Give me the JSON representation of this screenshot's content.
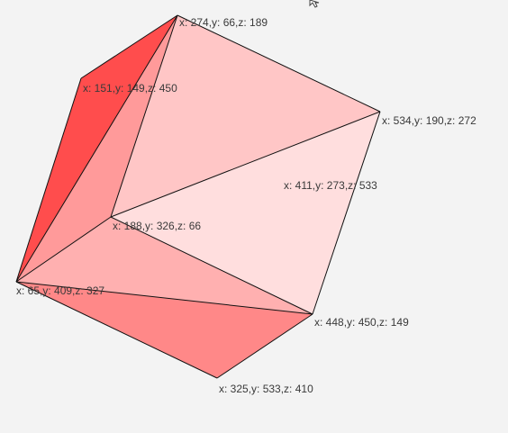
{
  "vertices": [
    {
      "id": "v1",
      "label": "x: 274,y: 66,z: 189"
    },
    {
      "id": "v2",
      "label": "x: 151,y: 149,z: 450"
    },
    {
      "id": "v3",
      "label": "x: 534,y: 190,z: 272"
    },
    {
      "id": "v4",
      "label": "x: 411,y: 273,z: 533"
    },
    {
      "id": "v5",
      "label": "x: 188,y: 326,z: 66"
    },
    {
      "id": "v6",
      "label": "x: 65,y: 409,z: 327"
    },
    {
      "id": "v7",
      "label": "x: 448,y: 450,z: 149"
    },
    {
      "id": "v8",
      "label": "x: 325,y: 533,z: 410"
    }
  ],
  "colors": {
    "background": "#f3f3f3",
    "edge": "#111111",
    "label": "#3a3a3a"
  },
  "faces": [
    {
      "name": "face-back-upper-left",
      "vertices": [
        "v1",
        "v2",
        "v6"
      ],
      "color": "#ff4d4d"
    },
    {
      "name": "face-left-mid",
      "vertices": [
        "v1",
        "v6",
        "v5"
      ],
      "color": "#ff9a9a"
    },
    {
      "name": "face-top-large",
      "vertices": [
        "v1",
        "v3",
        "v5"
      ],
      "color": "#ffc6c6"
    },
    {
      "name": "face-right",
      "vertices": [
        "v3",
        "v7",
        "v5"
      ],
      "color": "#ffdede"
    },
    {
      "name": "face-bottom-mid",
      "vertices": [
        "v5",
        "v7",
        "v6"
      ],
      "color": "#ffb0b0"
    },
    {
      "name": "face-bottom",
      "vertices": [
        "v6",
        "v7",
        "v8"
      ],
      "color": "#ff8888"
    }
  ]
}
